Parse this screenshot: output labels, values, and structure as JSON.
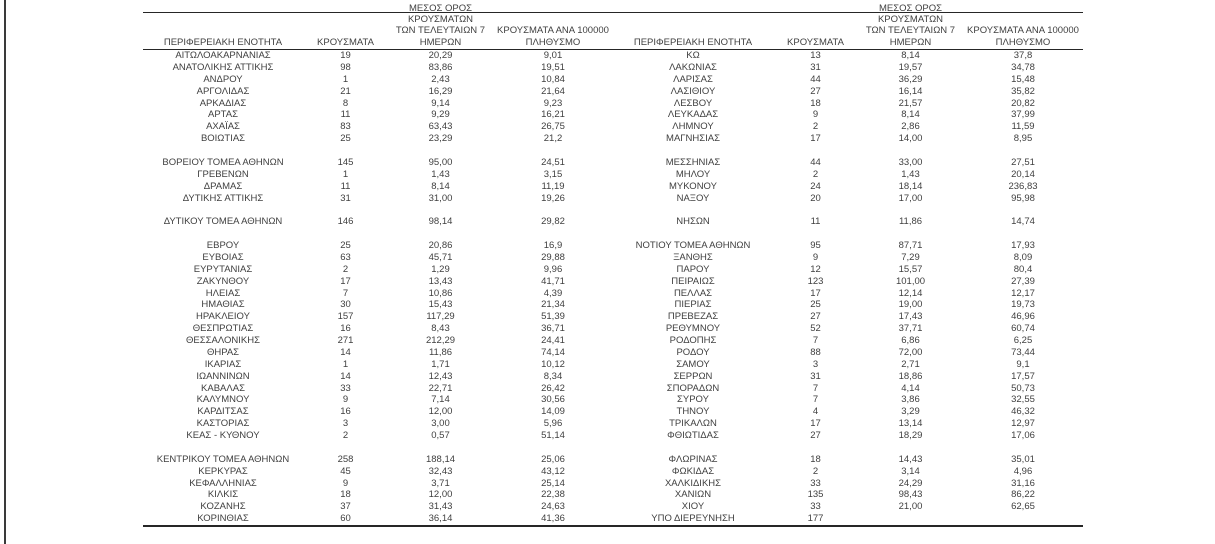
{
  "table": {
    "headers": {
      "region": "ΠΕΡΙΦΕΡΕΙΑΚΗ ΕΝΟΤΗΤΑ",
      "cases": "ΚΡΟΥΣΜΑΤΑ",
      "avg7": "ΜΕΣΟΣ ΟΡΟΣ ΚΡΟΥΣΜΑΤΩΝ\nΤΩΝ ΤΕΛΕΥΤΑΙΩΝ 7\nΗΜΕΡΩΝ",
      "per100k": "ΚΡΟΥΣΜΑΤΑ ΑΝΑ 100000\nΠΛΗΘΥΣΜΟ"
    },
    "left_groups": [
      [
        {
          "region": "ΑΙΤΩΛΟΑΚΑΡΝΑΝΙΑΣ",
          "cases": "19",
          "avg7": "20,29",
          "per100k": "9,01"
        },
        {
          "region": "ΑΝΑΤΟΛΙΚΗΣ ΑΤΤΙΚΗΣ",
          "cases": "98",
          "avg7": "83,86",
          "per100k": "19,51"
        },
        {
          "region": "ΑΝΔΡΟΥ",
          "cases": "1",
          "avg7": "2,43",
          "per100k": "10,84"
        },
        {
          "region": "ΑΡΓΟΛΙΔΑΣ",
          "cases": "21",
          "avg7": "16,29",
          "per100k": "21,64"
        },
        {
          "region": "ΑΡΚΑΔΙΑΣ",
          "cases": "8",
          "avg7": "9,14",
          "per100k": "9,23"
        },
        {
          "region": "ΑΡΤΑΣ",
          "cases": "11",
          "avg7": "9,29",
          "per100k": "16,21"
        },
        {
          "region": "ΑΧΑΪΑΣ",
          "cases": "83",
          "avg7": "63,43",
          "per100k": "26,75"
        },
        {
          "region": "ΒΟΙΩΤΙΑΣ",
          "cases": "25",
          "avg7": "23,29",
          "per100k": "21,2"
        }
      ],
      [
        {
          "region": "ΒΟΡΕΙΟΥ ΤΟΜΕΑ ΑΘΗΝΩΝ",
          "cases": "145",
          "avg7": "95,00",
          "per100k": "24,51"
        },
        {
          "region": "ΓΡΕΒΕΝΩΝ",
          "cases": "1",
          "avg7": "1,43",
          "per100k": "3,15"
        },
        {
          "region": "ΔΡΑΜΑΣ",
          "cases": "11",
          "avg7": "8,14",
          "per100k": "11,19"
        },
        {
          "region": "ΔΥΤΙΚΗΣ ΑΤΤΙΚΗΣ",
          "cases": "31",
          "avg7": "31,00",
          "per100k": "19,26"
        }
      ],
      [
        {
          "region": "ΔΥΤΙΚΟΥ ΤΟΜΕΑ ΑΘΗΝΩΝ",
          "cases": "146",
          "avg7": "98,14",
          "per100k": "29,82"
        }
      ],
      [
        {
          "region": "ΕΒΡΟΥ",
          "cases": "25",
          "avg7": "20,86",
          "per100k": "16,9"
        },
        {
          "region": "ΕΥΒΟΙΑΣ",
          "cases": "63",
          "avg7": "45,71",
          "per100k": "29,88"
        },
        {
          "region": "ΕΥΡΥΤΑΝΙΑΣ",
          "cases": "2",
          "avg7": "1,29",
          "per100k": "9,96"
        },
        {
          "region": "ΖΑΚΥΝΘΟΥ",
          "cases": "17",
          "avg7": "13,43",
          "per100k": "41,71"
        },
        {
          "region": "ΗΛΕΙΑΣ",
          "cases": "7",
          "avg7": "10,86",
          "per100k": "4,39"
        },
        {
          "region": "ΗΜΑΘΙΑΣ",
          "cases": "30",
          "avg7": "15,43",
          "per100k": "21,34"
        },
        {
          "region": "ΗΡΑΚΛΕΙΟΥ",
          "cases": "157",
          "avg7": "117,29",
          "per100k": "51,39"
        },
        {
          "region": "ΘΕΣΠΡΩΤΙΑΣ",
          "cases": "16",
          "avg7": "8,43",
          "per100k": "36,71"
        },
        {
          "region": "ΘΕΣΣΑΛΟΝΙΚΗΣ",
          "cases": "271",
          "avg7": "212,29",
          "per100k": "24,41"
        },
        {
          "region": "ΘΗΡΑΣ",
          "cases": "14",
          "avg7": "11,86",
          "per100k": "74,14"
        },
        {
          "region": "ΙΚΑΡΙΑΣ",
          "cases": "1",
          "avg7": "1,71",
          "per100k": "10,12"
        },
        {
          "region": "ΙΩΑΝΝΙΝΩΝ",
          "cases": "14",
          "avg7": "12,43",
          "per100k": "8,34"
        },
        {
          "region": "ΚΑΒΑΛΑΣ",
          "cases": "33",
          "avg7": "22,71",
          "per100k": "26,42"
        },
        {
          "region": "ΚΑΛΥΜΝΟΥ",
          "cases": "9",
          "avg7": "7,14",
          "per100k": "30,56"
        },
        {
          "region": "ΚΑΡΔΙΤΣΑΣ",
          "cases": "16",
          "avg7": "12,00",
          "per100k": "14,09"
        },
        {
          "region": "ΚΑΣΤΟΡΙΑΣ",
          "cases": "3",
          "avg7": "3,00",
          "per100k": "5,96"
        },
        {
          "region": "ΚΕΑΣ - ΚΥΘΝΟΥ",
          "cases": "2",
          "avg7": "0,57",
          "per100k": "51,14"
        }
      ],
      [
        {
          "region": "ΚΕΝΤΡΙΚΟΥ ΤΟΜΕΑ ΑΘΗΝΩΝ",
          "cases": "258",
          "avg7": "188,14",
          "per100k": "25,06"
        },
        {
          "region": "ΚΕΡΚΥΡΑΣ",
          "cases": "45",
          "avg7": "32,43",
          "per100k": "43,12"
        },
        {
          "region": "ΚΕΦΑΛΛΗΝΙΑΣ",
          "cases": "9",
          "avg7": "3,71",
          "per100k": "25,14"
        },
        {
          "region": "ΚΙΛΚΙΣ",
          "cases": "18",
          "avg7": "12,00",
          "per100k": "22,38"
        },
        {
          "region": "ΚΟΖΑΝΗΣ",
          "cases": "37",
          "avg7": "31,43",
          "per100k": "24,63"
        },
        {
          "region": "ΚΟΡΙΝΘΙΑΣ",
          "cases": "60",
          "avg7": "36,14",
          "per100k": "41,36"
        }
      ]
    ],
    "right_groups": [
      [
        {
          "region": "ΚΩ",
          "cases": "13",
          "avg7": "8,14",
          "per100k": "37,8"
        },
        {
          "region": "ΛΑΚΩΝΙΑΣ",
          "cases": "31",
          "avg7": "19,57",
          "per100k": "34,78"
        },
        {
          "region": "ΛΑΡΙΣΑΣ",
          "cases": "44",
          "avg7": "36,29",
          "per100k": "15,48"
        },
        {
          "region": "ΛΑΣΙΘΙΟΥ",
          "cases": "27",
          "avg7": "16,14",
          "per100k": "35,82"
        },
        {
          "region": "ΛΕΣΒΟΥ",
          "cases": "18",
          "avg7": "21,57",
          "per100k": "20,82"
        },
        {
          "region": "ΛΕΥΚΑΔΑΣ",
          "cases": "9",
          "avg7": "8,14",
          "per100k": "37,99"
        },
        {
          "region": "ΛΗΜΝΟΥ",
          "cases": "2",
          "avg7": "2,86",
          "per100k": "11,59"
        },
        {
          "region": "ΜΑΓΝΗΣΙΑΣ",
          "cases": "17",
          "avg7": "14,00",
          "per100k": "8,95"
        }
      ],
      [
        {
          "region": "ΜΕΣΣΗΝΙΑΣ",
          "cases": "44",
          "avg7": "33,00",
          "per100k": "27,51"
        },
        {
          "region": "ΜΗΛΟΥ",
          "cases": "2",
          "avg7": "1,43",
          "per100k": "20,14"
        },
        {
          "region": "ΜΥΚΟΝΟΥ",
          "cases": "24",
          "avg7": "18,14",
          "per100k": "236,83"
        },
        {
          "region": "ΝΑΞΟΥ",
          "cases": "20",
          "avg7": "17,00",
          "per100k": "95,98"
        }
      ],
      [
        {
          "region": "ΝΗΣΩΝ",
          "cases": "11",
          "avg7": "11,86",
          "per100k": "14,74"
        }
      ],
      [
        {
          "region": "ΝΟΤΙΟΥ ΤΟΜΕΑ ΑΘΗΝΩΝ",
          "cases": "95",
          "avg7": "87,71",
          "per100k": "17,93"
        },
        {
          "region": "ΞΑΝΘΗΣ",
          "cases": "9",
          "avg7": "7,29",
          "per100k": "8,09"
        },
        {
          "region": "ΠΑΡΟΥ",
          "cases": "12",
          "avg7": "15,57",
          "per100k": "80,4"
        },
        {
          "region": "ΠΕΙΡΑΙΩΣ",
          "cases": "123",
          "avg7": "101,00",
          "per100k": "27,39"
        },
        {
          "region": "ΠΕΛΛΑΣ",
          "cases": "17",
          "avg7": "12,14",
          "per100k": "12,17"
        },
        {
          "region": "ΠΙΕΡΙΑΣ",
          "cases": "25",
          "avg7": "19,00",
          "per100k": "19,73"
        },
        {
          "region": "ΠΡΕΒΕΖΑΣ",
          "cases": "27",
          "avg7": "17,43",
          "per100k": "46,96"
        },
        {
          "region": "ΡΕΘΥΜΝΟΥ",
          "cases": "52",
          "avg7": "37,71",
          "per100k": "60,74"
        },
        {
          "region": "ΡΟΔΟΠΗΣ",
          "cases": "7",
          "avg7": "6,86",
          "per100k": "6,25"
        },
        {
          "region": "ΡΟΔΟΥ",
          "cases": "88",
          "avg7": "72,00",
          "per100k": "73,44"
        },
        {
          "region": "ΣΑΜΟΥ",
          "cases": "3",
          "avg7": "2,71",
          "per100k": "9,1"
        },
        {
          "region": "ΣΕΡΡΩΝ",
          "cases": "31",
          "avg7": "18,86",
          "per100k": "17,57"
        },
        {
          "region": "ΣΠΟΡΑΔΩΝ",
          "cases": "7",
          "avg7": "4,14",
          "per100k": "50,73"
        },
        {
          "region": "ΣΥΡΟΥ",
          "cases": "7",
          "avg7": "3,86",
          "per100k": "32,55"
        },
        {
          "region": "ΤΗΝΟΥ",
          "cases": "4",
          "avg7": "3,29",
          "per100k": "46,32"
        },
        {
          "region": "ΤΡΙΚΑΛΩΝ",
          "cases": "17",
          "avg7": "13,14",
          "per100k": "12,97"
        },
        {
          "region": "ΦΘΙΩΤΙΔΑΣ",
          "cases": "27",
          "avg7": "18,29",
          "per100k": "17,06"
        }
      ],
      [
        {
          "region": "ΦΛΩΡΙΝΑΣ",
          "cases": "18",
          "avg7": "14,43",
          "per100k": "35,01"
        },
        {
          "region": "ΦΩΚΙΔΑΣ",
          "cases": "2",
          "avg7": "3,14",
          "per100k": "4,96"
        },
        {
          "region": "ΧΑΛΚΙΔΙΚΗΣ",
          "cases": "33",
          "avg7": "24,29",
          "per100k": "31,16"
        },
        {
          "region": "ΧΑΝΙΩΝ",
          "cases": "135",
          "avg7": "98,43",
          "per100k": "86,22"
        },
        {
          "region": "ΧΙΟΥ",
          "cases": "33",
          "avg7": "21,00",
          "per100k": "62,65"
        },
        {
          "region": "ΥΠΟ ΔΙΕΡΕΥΝΗΣΗ",
          "cases": "177",
          "avg7": "",
          "per100k": ""
        }
      ]
    ]
  }
}
